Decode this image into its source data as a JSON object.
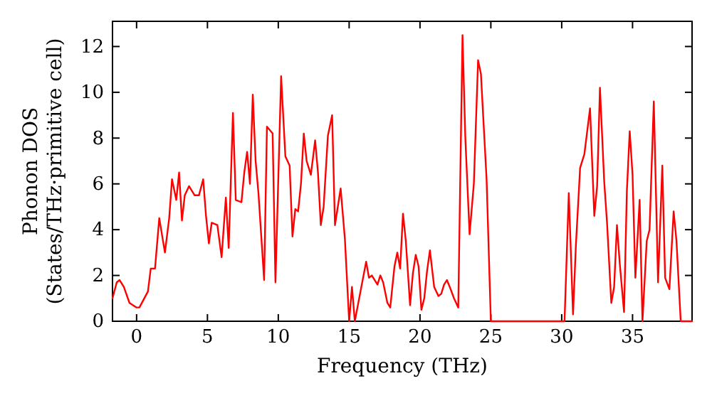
{
  "chart_data": {
    "type": "line",
    "xlabel": "Frequency (THz)",
    "ylabel": "Phonon DOS\n(States/THz·primitive cell)",
    "xlim": [
      -1.7,
      39.2
    ],
    "ylim": [
      0,
      13.1
    ],
    "xticks": [
      0,
      5,
      10,
      15,
      20,
      25,
      30,
      35
    ],
    "yticks": [
      0,
      2,
      4,
      6,
      8,
      10,
      12
    ],
    "grid": false,
    "marker": "none",
    "line_style": "solid",
    "series": [
      {
        "color": "#ff0000",
        "x": [
          -1.7,
          -1.4,
          -1.2,
          -0.9,
          -0.5,
          0,
          0.2,
          0.8,
          1.0,
          1.3,
          1.6,
          2.0,
          2.3,
          2.5,
          2.8,
          3.0,
          3.2,
          3.4,
          3.7,
          4.1,
          4.4,
          4.7,
          4.9,
          5.1,
          5.3,
          5.7,
          6.0,
          6.3,
          6.5,
          6.8,
          7.0,
          7.4,
          7.6,
          7.8,
          8.0,
          8.2,
          8.4,
          8.6,
          9.0,
          9.2,
          9.6,
          9.8,
          10.2,
          10.5,
          10.8,
          11.0,
          11.2,
          11.4,
          11.6,
          11.8,
          12.0,
          12.3,
          12.6,
          12.8,
          13.0,
          13.2,
          13.5,
          13.8,
          14.0,
          14.4,
          14.7,
          15.0,
          15.2,
          15.4,
          15.8,
          16.2,
          16.4,
          16.6,
          17.0,
          17.2,
          17.4,
          17.7,
          17.9,
          18.2,
          18.4,
          18.6,
          18.8,
          19.0,
          19.3,
          19.5,
          19.7,
          19.9,
          20.1,
          20.3,
          20.5,
          20.7,
          21.0,
          21.3,
          21.5,
          21.7,
          21.9,
          22.1,
          22.4,
          22.7,
          23.0,
          23.2,
          23.5,
          23.8,
          24.1,
          24.3,
          24.5,
          24.7,
          25.0,
          30.2,
          30.5,
          30.8,
          31.0,
          31.3,
          31.6,
          32.0,
          32.3,
          32.5,
          32.7,
          33.0,
          33.2,
          33.5,
          33.7,
          33.9,
          34.1,
          34.4,
          34.6,
          34.8,
          35.0,
          35.2,
          35.5,
          35.7,
          36.0,
          36.2,
          36.5,
          36.8,
          37.1,
          37.3,
          37.6,
          37.9,
          38.1,
          38.4,
          39.2
        ],
        "values": [
          1.0,
          1.7,
          1.8,
          1.5,
          0.8,
          0.6,
          0.6,
          1.3,
          2.3,
          2.3,
          4.5,
          3.0,
          4.5,
          6.2,
          5.3,
          6.5,
          4.4,
          5.5,
          5.9,
          5.5,
          5.5,
          6.2,
          4.6,
          3.4,
          4.3,
          4.2,
          2.8,
          5.4,
          3.2,
          9.1,
          5.3,
          5.2,
          6.5,
          7.4,
          6.0,
          9.9,
          7.0,
          5.6,
          1.8,
          8.5,
          8.2,
          1.7,
          10.7,
          7.2,
          6.8,
          3.7,
          4.9,
          4.8,
          6.0,
          8.2,
          7.0,
          6.4,
          7.9,
          6.5,
          4.2,
          5.0,
          8.1,
          9.0,
          4.2,
          5.8,
          3.6,
          0,
          1.5,
          0,
          1.3,
          2.6,
          1.9,
          2.0,
          1.6,
          2.0,
          1.7,
          0.8,
          0.6,
          2.4,
          3.0,
          2.3,
          4.7,
          3.5,
          0.7,
          2.1,
          2.9,
          2.4,
          0.5,
          1.0,
          2.2,
          3.1,
          1.5,
          1.1,
          1.2,
          1.6,
          1.8,
          1.5,
          1.0,
          0.6,
          12.5,
          8.0,
          3.8,
          6.0,
          11.4,
          10.8,
          8.5,
          6.2,
          0,
          0,
          5.6,
          0.3,
          3.3,
          6.7,
          7.3,
          9.3,
          4.6,
          5.9,
          10.2,
          6.1,
          4.3,
          0.8,
          1.5,
          4.2,
          2.5,
          0.4,
          5.7,
          8.3,
          6.4,
          1.9,
          5.3,
          0,
          3.5,
          4.0,
          9.6,
          1.7,
          6.8,
          1.9,
          1.4,
          4.8,
          3.5,
          0,
          0
        ]
      }
    ]
  }
}
